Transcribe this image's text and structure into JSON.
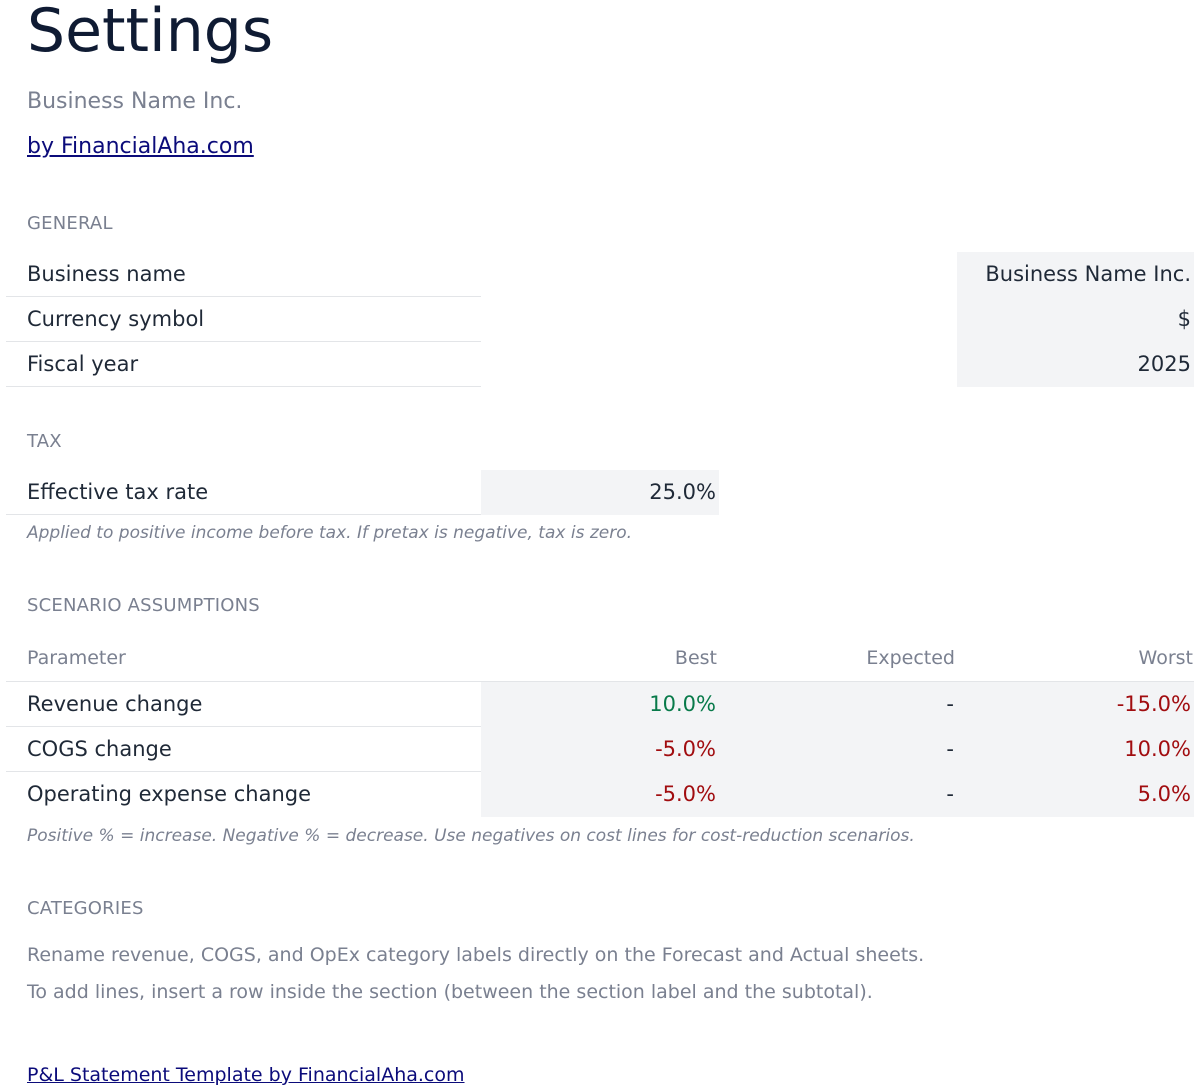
{
  "page": {
    "title": "Settings",
    "business": "Business Name Inc.",
    "credit_link": "by FinancialAha.com"
  },
  "general": {
    "label": "GENERAL",
    "rows": [
      {
        "label": "Business name",
        "value": "Business Name Inc."
      },
      {
        "label": "Currency symbol",
        "value": "$"
      },
      {
        "label": "Fiscal year",
        "value": "2025"
      }
    ]
  },
  "tax": {
    "label": "TAX",
    "row": {
      "label": "Effective tax rate",
      "value": "25.0%"
    },
    "note": "Applied to positive income before tax. If pretax is negative, tax is zero."
  },
  "scenarios": {
    "label": "SCENARIO ASSUMPTIONS",
    "headers": {
      "parameter": "Parameter",
      "best": "Best",
      "expected": "Expected",
      "worst": "Worst"
    },
    "rows": [
      {
        "label": "Revenue change",
        "best": "10.0%",
        "expected": "-",
        "worst": "-15.0%"
      },
      {
        "label": "COGS change",
        "best": "-5.0%",
        "expected": "-",
        "worst": "10.0%"
      },
      {
        "label": "Operating expense change",
        "best": "-5.0%",
        "expected": "-",
        "worst": "5.0%"
      }
    ],
    "note": "Positive % = increase. Negative % = decrease. Use negatives on cost lines for cost-reduction scenarios."
  },
  "categories": {
    "label": "CATEGORIES",
    "line1": "Rename revenue, COGS, and OpEx category labels directly on the Forecast and Actual sheets.",
    "line2": "To add lines, insert a row inside the section (between the section label and the subtotal)."
  },
  "footer": {
    "link": "P&L Statement Template by FinancialAha.com"
  },
  "colors": {
    "positive": "#087a4a",
    "negative": "#a10d10",
    "input_fill": "#f3f4f6",
    "link": "#0b0b7a"
  }
}
